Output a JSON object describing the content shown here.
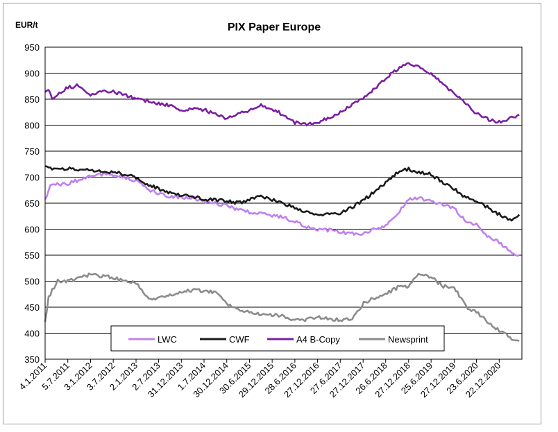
{
  "chart_data": {
    "type": "line",
    "title": "PIX Paper Europe",
    "ylabel": "EUR/t",
    "xlabel": "",
    "ylim": [
      350,
      950
    ],
    "yticks": [
      350,
      400,
      450,
      500,
      550,
      600,
      650,
      700,
      750,
      800,
      850,
      900,
      950
    ],
    "grid": "horizontal",
    "legend_position": "bottom-center",
    "x_tick_labels": [
      "4.1.2011",
      "5.7.2011",
      "3.1.2012",
      "3.7.2012",
      "2.1.2013",
      "2.7.2013",
      "31.12.2013",
      "1.7.2014",
      "30.12.2014",
      "30.6.2015",
      "29.12.2015",
      "28.6.2016",
      "27.12.2016",
      "27.6.2017",
      "27.12.2017",
      "26.6.2018",
      "27.12.2018",
      "25.6.2019",
      "27.12.2019",
      "23.6.2020",
      "22.12.2020"
    ],
    "series": [
      {
        "name": "LWC",
        "color": "#c080f0",
        "x": [
          "4.1.2011",
          "15.2.2011",
          "5.7.2011",
          "1.10.2011",
          "3.1.2012",
          "1.4.2012",
          "3.7.2012",
          "1.10.2012",
          "2.1.2013",
          "1.4.2013",
          "2.7.2013",
          "1.10.2013",
          "31.12.2013",
          "1.4.2014",
          "1.7.2014",
          "1.10.2014",
          "30.12.2014",
          "1.4.2015",
          "30.6.2015",
          "1.10.2015",
          "29.12.2015",
          "1.4.2016",
          "28.6.2016",
          "1.10.2016",
          "27.12.2016",
          "1.4.2017",
          "27.6.2017",
          "1.10.2017",
          "27.12.2017",
          "1.4.2018",
          "26.6.2018",
          "15.9.2018",
          "1.10.2018",
          "27.12.2018",
          "1.3.2019",
          "25.6.2019",
          "1.10.2019",
          "27.12.2019",
          "1.4.2020",
          "23.6.2020",
          "1.10.2020",
          "22.12.2020",
          "1.4.2021",
          "1.6.2021"
        ],
        "values": [
          655,
          685,
          688,
          695,
          703,
          706,
          704,
          700,
          693,
          678,
          668,
          663,
          662,
          660,
          655,
          650,
          645,
          637,
          633,
          630,
          627,
          622,
          614,
          605,
          600,
          598,
          594,
          592,
          592,
          600,
          605,
          627,
          630,
          657,
          660,
          655,
          645,
          640,
          615,
          608,
          585,
          575,
          555,
          550
        ]
      },
      {
        "name": "CWF",
        "color": "#1a1a1a",
        "x": [
          "4.1.2011",
          "5.7.2011",
          "3.1.2012",
          "3.7.2012",
          "1.10.2012",
          "2.1.2013",
          "1.4.2013",
          "2.7.2013",
          "1.10.2013",
          "31.12.2013",
          "1.4.2014",
          "1.7.2014",
          "1.10.2014",
          "30.12.2014",
          "1.4.2015",
          "30.6.2015",
          "1.10.2015",
          "29.12.2015",
          "1.4.2016",
          "28.6.2016",
          "1.10.2016",
          "27.12.2016",
          "1.4.2017",
          "27.6.2017",
          "1.10.2017",
          "27.12.2017",
          "1.4.2018",
          "26.6.2018",
          "1.10.2018",
          "27.12.2018",
          "25.6.2019",
          "1.10.2019",
          "27.12.2019",
          "1.4.2020",
          "23.6.2020",
          "1.10.2020",
          "22.12.2020",
          "1.4.2021",
          "1.6.2021"
        ],
        "values": [
          718,
          716,
          713,
          710,
          705,
          700,
          685,
          678,
          670,
          666,
          663,
          658,
          656,
          655,
          650,
          658,
          662,
          657,
          650,
          640,
          632,
          630,
          628,
          632,
          642,
          655,
          673,
          690,
          710,
          715,
          705,
          690,
          678,
          660,
          655,
          640,
          628,
          615,
          628
        ]
      },
      {
        "name": "A4 B-Copy",
        "color": "#7a1fa2",
        "x": [
          "4.1.2011",
          "1.2.2011",
          "1.3.2011",
          "5.7.2011",
          "1.10.2011",
          "3.1.2012",
          "1.4.2012",
          "3.7.2012",
          "1.10.2012",
          "2.1.2013",
          "1.4.2013",
          "2.7.2013",
          "1.10.2013",
          "31.12.2013",
          "1.4.2014",
          "1.7.2014",
          "1.10.2014",
          "30.12.2014",
          "1.4.2015",
          "30.6.2015",
          "1.10.2015",
          "29.12.2015",
          "1.4.2016",
          "28.6.2016",
          "1.10.2016",
          "27.12.2016",
          "1.4.2017",
          "27.6.2017",
          "1.10.2017",
          "27.12.2017",
          "1.4.2018",
          "26.6.2018",
          "1.10.2018",
          "27.12.2018",
          "25.6.2019",
          "1.10.2019",
          "27.12.2019",
          "1.4.2020",
          "23.6.2020",
          "1.10.2020",
          "22.12.2020",
          "1.4.2021",
          "1.6.2021"
        ],
        "values": [
          862,
          870,
          853,
          872,
          877,
          858,
          866,
          865,
          858,
          850,
          847,
          842,
          838,
          828,
          832,
          830,
          820,
          812,
          822,
          828,
          838,
          830,
          820,
          805,
          800,
          805,
          815,
          825,
          838,
          852,
          870,
          890,
          908,
          920,
          900,
          878,
          862,
          840,
          822,
          810,
          806,
          815,
          820
        ]
      },
      {
        "name": "Newsprint",
        "color": "#8c8c8c",
        "x": [
          "4.1.2011",
          "1.2.2011",
          "15.4.2011",
          "5.7.2011",
          "1.10.2011",
          "3.1.2012",
          "1.4.2012",
          "3.7.2012",
          "1.10.2012",
          "2.1.2013",
          "1.4.2013",
          "2.7.2013",
          "1.10.2013",
          "31.12.2013",
          "1.4.2014",
          "1.7.2014",
          "1.10.2014",
          "30.12.2014",
          "1.4.2015",
          "30.6.2015",
          "1.10.2015",
          "29.12.2015",
          "1.4.2016",
          "28.6.2016",
          "1.10.2016",
          "27.12.2016",
          "1.4.2017",
          "27.6.2017",
          "1.10.2017",
          "1.1.2018",
          "1.2.2018",
          "26.6.2018",
          "1.10.2018",
          "27.12.2018",
          "1.3.2019",
          "25.6.2019",
          "1.10.2019",
          "27.12.2019",
          "1.4.2020",
          "23.6.2020",
          "1.10.2020",
          "22.12.2020",
          "1.4.2021",
          "1.6.2021"
        ],
        "values": [
          420,
          470,
          500,
          500,
          505,
          513,
          510,
          507,
          500,
          497,
          468,
          467,
          472,
          480,
          483,
          481,
          478,
          458,
          445,
          440,
          437,
          435,
          432,
          425,
          426,
          430,
          428,
          426,
          426,
          458,
          462,
          475,
          488,
          490,
          512,
          508,
          490,
          488,
          450,
          440,
          420,
          405,
          390,
          385
        ]
      }
    ]
  }
}
